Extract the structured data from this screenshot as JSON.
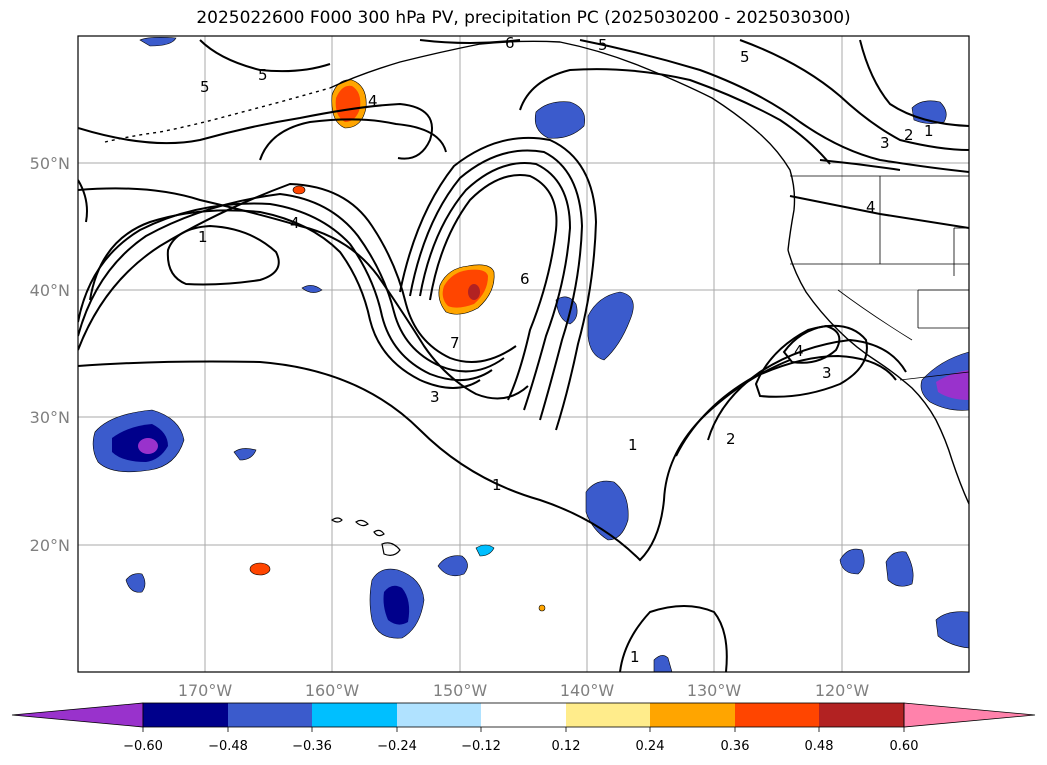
{
  "title": "2025022600 F000 300 hPa PV, precipitation PC (2025030200 - 2025030300)",
  "map": {
    "lon_range": [
      -180,
      -110
    ],
    "lat_range": [
      10,
      60
    ],
    "lat_ticks": [
      {
        "value": 50,
        "label": "50°N"
      },
      {
        "value": 40,
        "label": "40°N"
      },
      {
        "value": 30,
        "label": "30°N"
      },
      {
        "value": 20,
        "label": "20°N"
      }
    ],
    "lon_ticks": [
      {
        "value": -170,
        "label": "170°W"
      },
      {
        "value": -160,
        "label": "160°W"
      },
      {
        "value": -150,
        "label": "150°W"
      },
      {
        "value": -140,
        "label": "140°W"
      },
      {
        "value": -130,
        "label": "130°W"
      },
      {
        "value": -120,
        "label": "120°W"
      }
    ],
    "contour_labels": [
      "6",
      "5",
      "5",
      "4",
      "5",
      "5",
      "4",
      "1",
      "6",
      "7",
      "3",
      "1",
      "1",
      "2",
      "4",
      "3",
      "3",
      "2",
      "1",
      "4",
      "1"
    ],
    "colors": {
      "strong_negative": "#9932cc",
      "neg_060": "#00008b",
      "neg_048": "#3b5bcc",
      "neg_036": "#00bfff",
      "neg_024": "#b0e2ff",
      "neutral": "#ffffff",
      "pos_012": "#ffec8b",
      "pos_024": "#ffa500",
      "pos_036": "#ff4500",
      "pos_048": "#b22222",
      "pos_060": "#ff82ab"
    }
  },
  "colorbar": {
    "ticks": [
      "−0.60",
      "−0.48",
      "−0.36",
      "−0.24",
      "−0.12",
      "0.12",
      "0.24",
      "0.36",
      "0.48",
      "0.60"
    ],
    "colors": [
      "#9932cc",
      "#00008b",
      "#3b5bcc",
      "#00bfff",
      "#b0e2ff",
      "#ffffff",
      "#ffec8b",
      "#ffa500",
      "#ff4500",
      "#b22222",
      "#ff82ab"
    ]
  }
}
